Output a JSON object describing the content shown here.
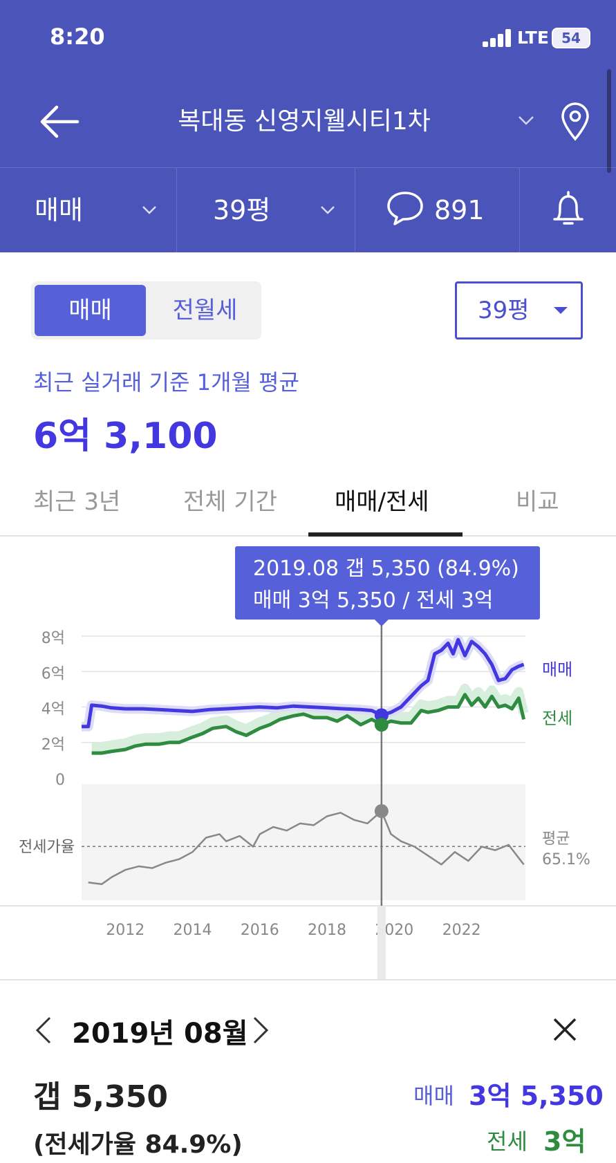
{
  "status_bar": {
    "time": "8:20",
    "network": "LTE",
    "battery": "54"
  },
  "nav": {
    "title": "복대동 신영지웰시티1차"
  },
  "filters": {
    "trade_type": "매매",
    "size": "39평",
    "comment_count": "891"
  },
  "segment": {
    "active": "매매",
    "inactive": "전월세"
  },
  "size_dropdown": {
    "label": "39평"
  },
  "price": {
    "subtitle": "최근 실거래 기준 1개월 평균",
    "value": "6억 3,100"
  },
  "tabs": [
    {
      "label": "최근 3년",
      "active": false
    },
    {
      "label": "전체 기간",
      "active": false
    },
    {
      "label": "매매/전세",
      "active": true
    },
    {
      "label": "비교",
      "active": false
    }
  ],
  "tooltip": {
    "line1": "2019.08  갭 5,350 (84.9%)",
    "line2": "매매 3억 5,350 / 전세 3억"
  },
  "colors": {
    "header": "#4b55b9",
    "accent": "#5660d8",
    "sale": "#4337e0",
    "jeonse": "#2e8b3f",
    "ratio": "#888888"
  },
  "chart_data": {
    "type": "line",
    "y_ticks": [
      "8억",
      "6억",
      "4억",
      "2억",
      "0"
    ],
    "y_unit": "억",
    "ylim": [
      0,
      8
    ],
    "x_ticks": [
      "2012",
      "2014",
      "2016",
      "2018",
      "2020",
      "2022"
    ],
    "xlim": [
      2010.7,
      2023.9
    ],
    "series": [
      {
        "name": "매매",
        "x": [
          2010.7,
          2010.9,
          2011.0,
          2011.3,
          2011.6,
          2012.0,
          2012.5,
          2013.0,
          2013.5,
          2014.0,
          2014.5,
          2015.0,
          2015.5,
          2016.0,
          2016.5,
          2017.0,
          2017.5,
          2018.0,
          2018.5,
          2019.0,
          2019.33,
          2019.62,
          2019.9,
          2020.2,
          2020.5,
          2020.8,
          2021.0,
          2021.2,
          2021.4,
          2021.6,
          2021.75,
          2021.9,
          2022.1,
          2022.3,
          2022.5,
          2022.7,
          2022.9,
          2023.1,
          2023.3,
          2023.5,
          2023.7,
          2023.85
        ],
        "values": [
          2.9,
          2.9,
          4.1,
          4.05,
          3.95,
          3.9,
          3.9,
          3.85,
          3.8,
          3.75,
          3.85,
          3.9,
          3.95,
          4.0,
          3.95,
          4.05,
          4.0,
          3.95,
          3.9,
          3.85,
          3.8,
          3.535,
          3.7,
          4.0,
          4.6,
          5.2,
          5.5,
          7.0,
          7.2,
          7.6,
          7.0,
          7.8,
          6.9,
          7.7,
          7.4,
          7.0,
          6.4,
          5.5,
          5.6,
          6.1,
          6.3,
          6.4
        ]
      },
      {
        "name": "전세",
        "x": [
          2011.0,
          2011.3,
          2011.6,
          2012.0,
          2012.3,
          2012.6,
          2013.0,
          2013.3,
          2013.6,
          2014.0,
          2014.3,
          2014.6,
          2015.0,
          2015.3,
          2015.6,
          2016.0,
          2016.3,
          2016.6,
          2017.0,
          2017.3,
          2017.6,
          2018.0,
          2018.3,
          2018.6,
          2019.0,
          2019.33,
          2019.62,
          2019.9,
          2020.2,
          2020.5,
          2020.8,
          2021.0,
          2021.3,
          2021.6,
          2021.9,
          2022.1,
          2022.3,
          2022.5,
          2022.7,
          2022.9,
          2023.1,
          2023.3,
          2023.5,
          2023.7,
          2023.85
        ],
        "values": [
          1.4,
          1.4,
          1.5,
          1.6,
          1.8,
          1.9,
          1.9,
          2.0,
          2.0,
          2.3,
          2.5,
          2.8,
          2.9,
          2.6,
          2.4,
          2.8,
          3.0,
          3.3,
          3.5,
          3.6,
          3.4,
          3.4,
          3.2,
          3.5,
          3.0,
          3.3,
          3.0,
          3.2,
          3.1,
          3.1,
          3.8,
          3.7,
          3.8,
          4.0,
          4.0,
          4.7,
          4.1,
          4.5,
          4.0,
          4.6,
          4.0,
          4.1,
          3.9,
          4.5,
          3.3
        ]
      },
      {
        "name": "전세가율",
        "x": [
          2010.9,
          2011.3,
          2011.6,
          2012.0,
          2012.4,
          2012.8,
          2013.2,
          2013.6,
          2014.0,
          2014.4,
          2014.8,
          2015.0,
          2015.4,
          2015.8,
          2016.0,
          2016.4,
          2016.8,
          2017.2,
          2017.6,
          2018.0,
          2018.4,
          2018.8,
          2019.2,
          2019.62,
          2019.9,
          2020.2,
          2020.6,
          2021.0,
          2021.4,
          2021.8,
          2022.2,
          2022.6,
          2023.0,
          2023.4,
          2023.85
        ],
        "values": [
          0.45,
          0.44,
          0.48,
          0.52,
          0.54,
          0.53,
          0.56,
          0.58,
          0.62,
          0.7,
          0.72,
          0.68,
          0.71,
          0.65,
          0.72,
          0.76,
          0.74,
          0.78,
          0.77,
          0.82,
          0.84,
          0.8,
          0.78,
          0.849,
          0.72,
          0.68,
          0.65,
          0.6,
          0.55,
          0.62,
          0.57,
          0.65,
          0.63,
          0.66,
          0.55
        ]
      }
    ],
    "series_labels": [
      "매매",
      "전세"
    ],
    "ratio_label": "전세가율",
    "avg_label": "평균",
    "avg_value": "65.1%",
    "avg_ratio": 0.651,
    "selected_x": 2019.62,
    "grid": true
  },
  "detail": {
    "date": "2019년 08월",
    "gap": "갭 5,350",
    "ratio_text": "(전세가율 84.9%)",
    "sale_label": "매매",
    "sale_value": "3억 5,350",
    "jeonse_label": "전세",
    "jeonse_value": "3억"
  }
}
